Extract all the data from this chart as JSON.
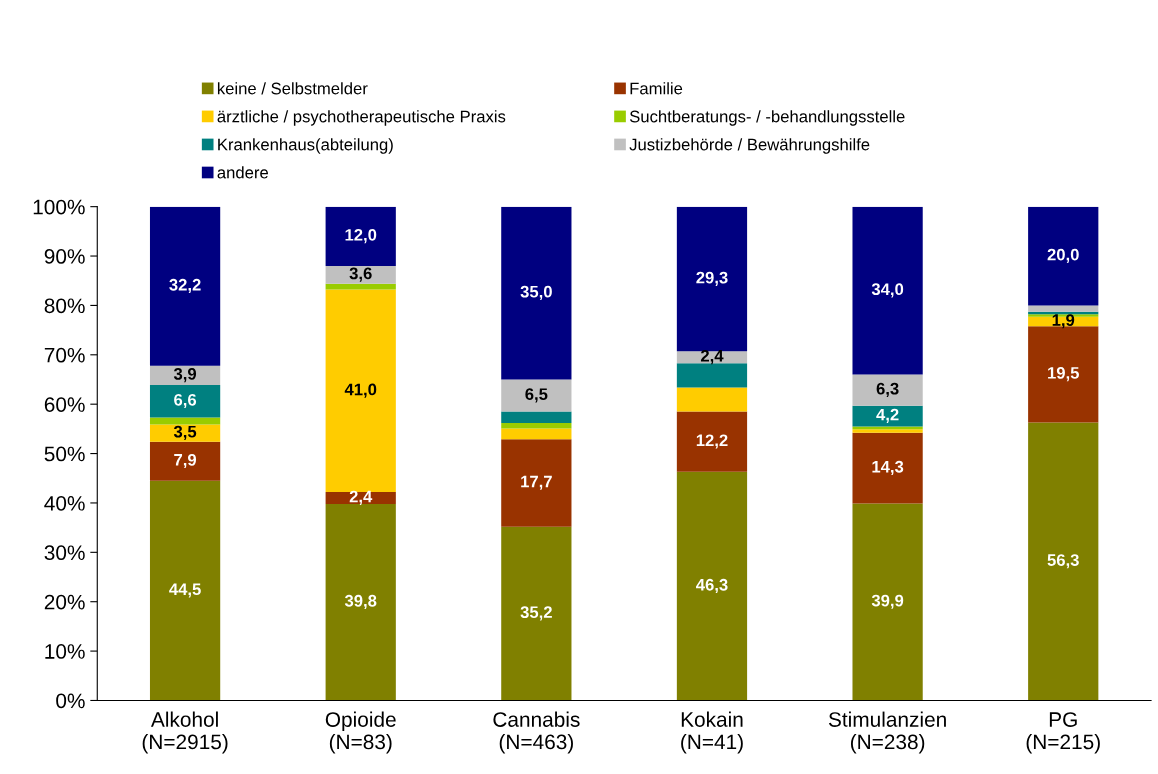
{
  "chart_data": {
    "type": "bar",
    "stacked": true,
    "categories": [
      "Alkohol\n(N=2915)",
      "Opioide\n(N=83)",
      "Cannabis\n(N=463)",
      "Kokain\n(N=41)",
      "Stimulanzien\n(N=238)",
      "PG\n(N=215)"
    ],
    "series": [
      {
        "name": "keine / Selbstmelder",
        "color": "#808000",
        "values": [
          44.5,
          39.8,
          35.2,
          46.3,
          39.9,
          56.3
        ],
        "value_labels": [
          "44,5",
          "39,8",
          "35,2",
          "46,3",
          "39,9",
          "56,3"
        ]
      },
      {
        "name": "Familie",
        "color": "#993300",
        "values": [
          7.9,
          2.4,
          17.7,
          12.2,
          14.3,
          19.5
        ],
        "value_labels": [
          "7,9",
          "2,4",
          "17,7",
          "12,2",
          "14,3",
          "19,5"
        ]
      },
      {
        "name": "ärztliche / psychotherapeutische Praxis",
        "color": "#ffcc00",
        "values": [
          3.5,
          41.0,
          2.2,
          4.9,
          0.7,
          1.9
        ],
        "value_labels": [
          "3,5",
          "41,0",
          null,
          null,
          null,
          "1,9"
        ]
      },
      {
        "name": "Suchtberatungs- / -behandlungsstelle",
        "color": "#99cc00",
        "values": [
          1.4,
          1.2,
          1.1,
          0,
          0.6,
          0.5
        ],
        "value_labels": [
          null,
          null,
          null,
          null,
          null,
          null
        ]
      },
      {
        "name": "Krankenhaus(abteilung)",
        "color": "#008080",
        "values": [
          6.6,
          0,
          2.3,
          4.9,
          4.2,
          0.5
        ],
        "value_labels": [
          "6,6",
          null,
          null,
          null,
          "4,2",
          null
        ]
      },
      {
        "name": "Justizbehörde / Bewährungshilfe",
        "color": "#c0c0c0",
        "values": [
          3.9,
          3.6,
          6.5,
          2.4,
          6.3,
          1.3
        ],
        "value_labels": [
          "3,9",
          "3,6",
          "6,5",
          "2,4",
          "6,3",
          null
        ]
      },
      {
        "name": "andere",
        "color": "#000080",
        "values": [
          32.2,
          12.0,
          35.0,
          29.3,
          34.0,
          20.0
        ],
        "value_labels": [
          "32,2",
          "12,0",
          "35,0",
          "29,3",
          "34,0",
          "20,0"
        ]
      }
    ],
    "ylim": [
      0,
      100
    ],
    "yticks": [
      {
        "value": 0,
        "label": "0%"
      },
      {
        "value": 10,
        "label": "10%"
      },
      {
        "value": 20,
        "label": "20%"
      },
      {
        "value": 30,
        "label": "30%"
      },
      {
        "value": 40,
        "label": "40%"
      },
      {
        "value": 50,
        "label": "50%"
      },
      {
        "value": 60,
        "label": "60%"
      },
      {
        "value": 70,
        "label": "70%"
      },
      {
        "value": 80,
        "label": "80%"
      },
      {
        "value": 90,
        "label": "90%"
      },
      {
        "value": 100,
        "label": "100%"
      }
    ],
    "grid": false,
    "legend": "top"
  }
}
